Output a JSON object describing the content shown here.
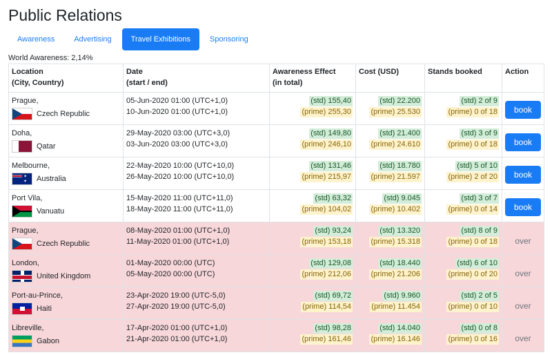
{
  "page": {
    "title": "Public Relations"
  },
  "tabs": [
    {
      "label": "Awareness",
      "active": false
    },
    {
      "label": "Advertising",
      "active": false
    },
    {
      "label": "Travel Exhibitions",
      "active": true
    },
    {
      "label": "Sponsoring",
      "active": false
    }
  ],
  "world_awareness": "World Awareness: 2,14%",
  "table": {
    "headers": {
      "location_line1": "Location",
      "location_line2": "(City, Country)",
      "date_line1": "Date",
      "date_line2": "(start / end)",
      "awareness_line1": "Awareness Effect",
      "awareness_line2": "(in total)",
      "cost": "Cost (USD)",
      "stands": "Stands booked",
      "action": "Action"
    },
    "rows": [
      {
        "city": "Prague,",
        "country": "Czech Republic",
        "flag": "flag-cz",
        "start": "05-Jun-2020 01:00 (UTC+1,0)",
        "end": "10-Jun-2020 01:00 (UTC+1,0)",
        "aw_std": "(std) 155,40",
        "aw_prime": "(prime) 255,30",
        "cost_std": "(std) 22.200",
        "cost_prime": "(prime) 25.530",
        "stand_std": "(std) 2 of 9",
        "stand_prime": "(prime) 0 of 18",
        "action": "book",
        "past": false
      },
      {
        "city": "Doha,",
        "country": "Qatar",
        "flag": "flag-qa",
        "start": "29-May-2020 03:00 (UTC+3,0)",
        "end": "03-Jun-2020 03:00 (UTC+3,0)",
        "aw_std": "(std) 149,80",
        "aw_prime": "(prime) 246,10",
        "cost_std": "(std) 21.400",
        "cost_prime": "(prime) 24.610",
        "stand_std": "(std) 3 of 9",
        "stand_prime": "(prime) 0 of 18",
        "action": "book",
        "past": false
      },
      {
        "city": "Melbourne,",
        "country": "Australia",
        "flag": "flag-au",
        "start": "22-May-2020 10:00 (UTC+10,0)",
        "end": "26-May-2020 10:00 (UTC+10,0)",
        "aw_std": "(std) 131,46",
        "aw_prime": "(prime) 215,97",
        "cost_std": "(std) 18.780",
        "cost_prime": "(prime) 21.597",
        "stand_std": "(std) 5 of 10",
        "stand_prime": "(prime) 2 of 20",
        "action": "book",
        "past": false
      },
      {
        "city": "Port Vila,",
        "country": "Vanuatu",
        "flag": "flag-vu",
        "start": "15-May-2020 11:00 (UTC+11,0)",
        "end": "18-May-2020 11:00 (UTC+11,0)",
        "aw_std": "(std) 63,32",
        "aw_prime": "(prime) 104,02",
        "cost_std": "(std) 9.045",
        "cost_prime": "(prime) 10.402",
        "stand_std": "(std) 3 of 7",
        "stand_prime": "(prime) 0 of 14",
        "action": "book",
        "past": false
      },
      {
        "city": "Prague,",
        "country": "Czech Republic",
        "flag": "flag-cz",
        "start": "08-May-2020 01:00 (UTC+1,0)",
        "end": "11-May-2020 01:00 (UTC+1,0)",
        "aw_std": "(std) 93,24",
        "aw_prime": "(prime) 153,18",
        "cost_std": "(std) 13.320",
        "cost_prime": "(prime) 15.318",
        "stand_std": "(std) 8 of 9",
        "stand_prime": "(prime) 0 of 18",
        "action": "over",
        "past": true
      },
      {
        "city": "London,",
        "country": "United Kingdom",
        "flag": "flag-uk",
        "start": "01-May-2020 00:00 (UTC)",
        "end": "05-May-2020 00:00 (UTC)",
        "aw_std": "(std) 129,08",
        "aw_prime": "(prime) 212,06",
        "cost_std": "(std) 18.440",
        "cost_prime": "(prime) 21.206",
        "stand_std": "(std) 6 of 10",
        "stand_prime": "(prime) 0 of 20",
        "action": "over",
        "past": true
      },
      {
        "city": "Port-au-Prince,",
        "country": "Haiti",
        "flag": "flag-ht",
        "start": "23-Apr-2020 19:00 (UTC-5,0)",
        "end": "27-Apr-2020 19:00 (UTC-5,0)",
        "aw_std": "(std) 69,72",
        "aw_prime": "(prime) 114,54",
        "cost_std": "(std) 9.960",
        "cost_prime": "(prime) 11.454",
        "stand_std": "(std) 2 of 5",
        "stand_prime": "(prime) 0 of 10",
        "action": "over",
        "past": true
      },
      {
        "city": "Libreville,",
        "country": "Gabon",
        "flag": "flag-ga",
        "start": "17-Apr-2020 01:00 (UTC+1,0)",
        "end": "21-Apr-2020 01:00 (UTC+1,0)",
        "aw_std": "(std) 98,28",
        "aw_prime": "(prime) 161,46",
        "cost_std": "(std) 14.040",
        "cost_prime": "(prime) 16.146",
        "stand_std": "(std) 0 of 8",
        "stand_prime": "(prime) 0 of 16",
        "action": "over",
        "past": true
      }
    ]
  }
}
